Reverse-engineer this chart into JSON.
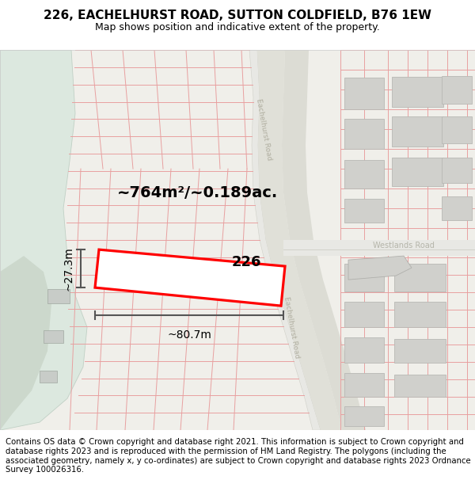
{
  "title": "226, EACHELHURST ROAD, SUTTON COLDFIELD, B76 1EW",
  "subtitle": "Map shows position and indicative extent of the property.",
  "footer": "Contains OS data © Crown copyright and database right 2021. This information is subject to Crown copyright and database rights 2023 and is reproduced with the permission of HM Land Registry. The polygons (including the associated geometry, namely x, y co-ordinates) are subject to Crown copyright and database rights 2023 Ordnance Survey 100026316.",
  "area_label": "~764m²/~0.189ac.",
  "number_label": "226",
  "width_label": "~80.7m",
  "height_label": "~27.3m",
  "bg_color": "#f0efea",
  "green_color": "#dce8df",
  "green2_color": "#ccd8cc",
  "road_color": "#e8e8e4",
  "parcel_color": "#e8a0a0",
  "highlight_color": "#ff0000",
  "building_color": "#d0d0cc",
  "measurement_color": "#555555",
  "road_label_color": "#b0aea0",
  "title_fontsize": 11,
  "subtitle_fontsize": 9,
  "footer_fontsize": 7.3,
  "area_fontsize": 14,
  "number_fontsize": 13,
  "meas_fontsize": 10,
  "road_label_fontsize": 6.5
}
